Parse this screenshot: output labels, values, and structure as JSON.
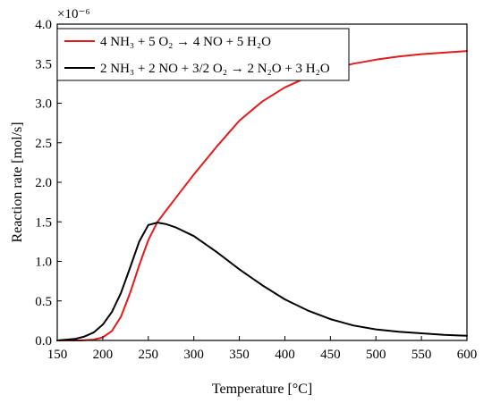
{
  "chart_data": {
    "type": "line",
    "title": "",
    "xlabel": "Temperature [°C]",
    "ylabel": "Reaction rate [mol/s]",
    "xlim": [
      150,
      600
    ],
    "ylim": [
      0,
      4.0
    ],
    "y_multiplier": "×10⁻⁶",
    "x_ticks": [
      150,
      200,
      250,
      300,
      350,
      400,
      450,
      500,
      550,
      600
    ],
    "y_ticks": [
      "0.0",
      "0.5",
      "1.0",
      "1.5",
      "2.0",
      "2.5",
      "3.0",
      "3.5",
      "4.0"
    ],
    "grid": false,
    "legend_position": "top-left",
    "series": [
      {
        "name": "4 NH₃ + 5 O₂ → 4 NO + 5 H₂O",
        "color": "#e41a1c",
        "x": [
          150,
          175,
          190,
          200,
          210,
          220,
          230,
          240,
          250,
          260,
          270,
          280,
          300,
          325,
          350,
          375,
          400,
          425,
          450,
          475,
          500,
          525,
          550,
          575,
          600
        ],
        "y": [
          0.0,
          0.0,
          0.01,
          0.04,
          0.12,
          0.3,
          0.6,
          0.95,
          1.27,
          1.5,
          1.65,
          1.8,
          2.1,
          2.45,
          2.78,
          3.02,
          3.2,
          3.33,
          3.43,
          3.5,
          3.55,
          3.59,
          3.62,
          3.64,
          3.66
        ]
      },
      {
        "name": "2 NH₃ + 2 NO + 3/2 O₂ → 2 N₂O + 3 H₂O",
        "color": "#000000",
        "x": [
          150,
          160,
          170,
          180,
          190,
          200,
          210,
          220,
          230,
          240,
          250,
          260,
          270,
          280,
          300,
          325,
          350,
          375,
          400,
          425,
          450,
          475,
          500,
          525,
          550,
          575,
          600
        ],
        "y": [
          0.0,
          0.01,
          0.02,
          0.05,
          0.1,
          0.2,
          0.36,
          0.6,
          0.92,
          1.25,
          1.46,
          1.49,
          1.47,
          1.43,
          1.32,
          1.12,
          0.9,
          0.7,
          0.52,
          0.38,
          0.27,
          0.19,
          0.14,
          0.11,
          0.09,
          0.07,
          0.06
        ]
      }
    ]
  }
}
